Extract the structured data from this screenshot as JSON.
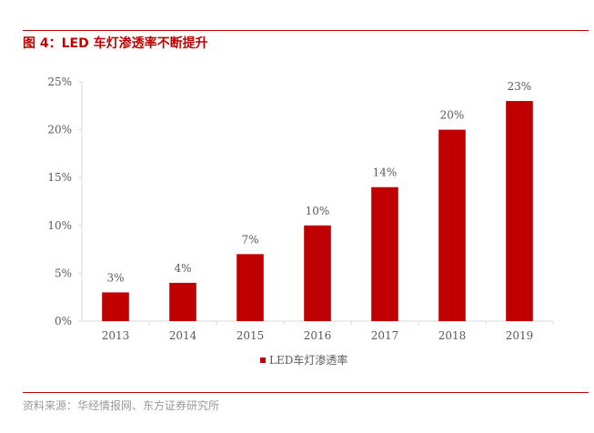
{
  "figure": {
    "title": "图 4：LED 车灯渗透率不断提升",
    "source": "资料来源：华经情报网、东方证券研究所"
  },
  "colors": {
    "accent": "#c00000",
    "bar": "#c00000",
    "text": "#595959",
    "axis": "#d9d9d9"
  },
  "chart_data": {
    "type": "bar",
    "categories": [
      "2013",
      "2014",
      "2015",
      "2016",
      "2017",
      "2018",
      "2019"
    ],
    "series": [
      {
        "name": "LED车灯渗透率",
        "values": [
          3,
          4,
          7,
          10,
          14,
          20,
          23
        ]
      }
    ],
    "data_labels": [
      "3%",
      "4%",
      "7%",
      "10%",
      "14%",
      "20%",
      "23%"
    ],
    "yticks": [
      "0%",
      "5%",
      "10%",
      "15%",
      "20%",
      "25%"
    ],
    "ylim": [
      0,
      25
    ],
    "grid": false,
    "legend_position": "bottom"
  }
}
